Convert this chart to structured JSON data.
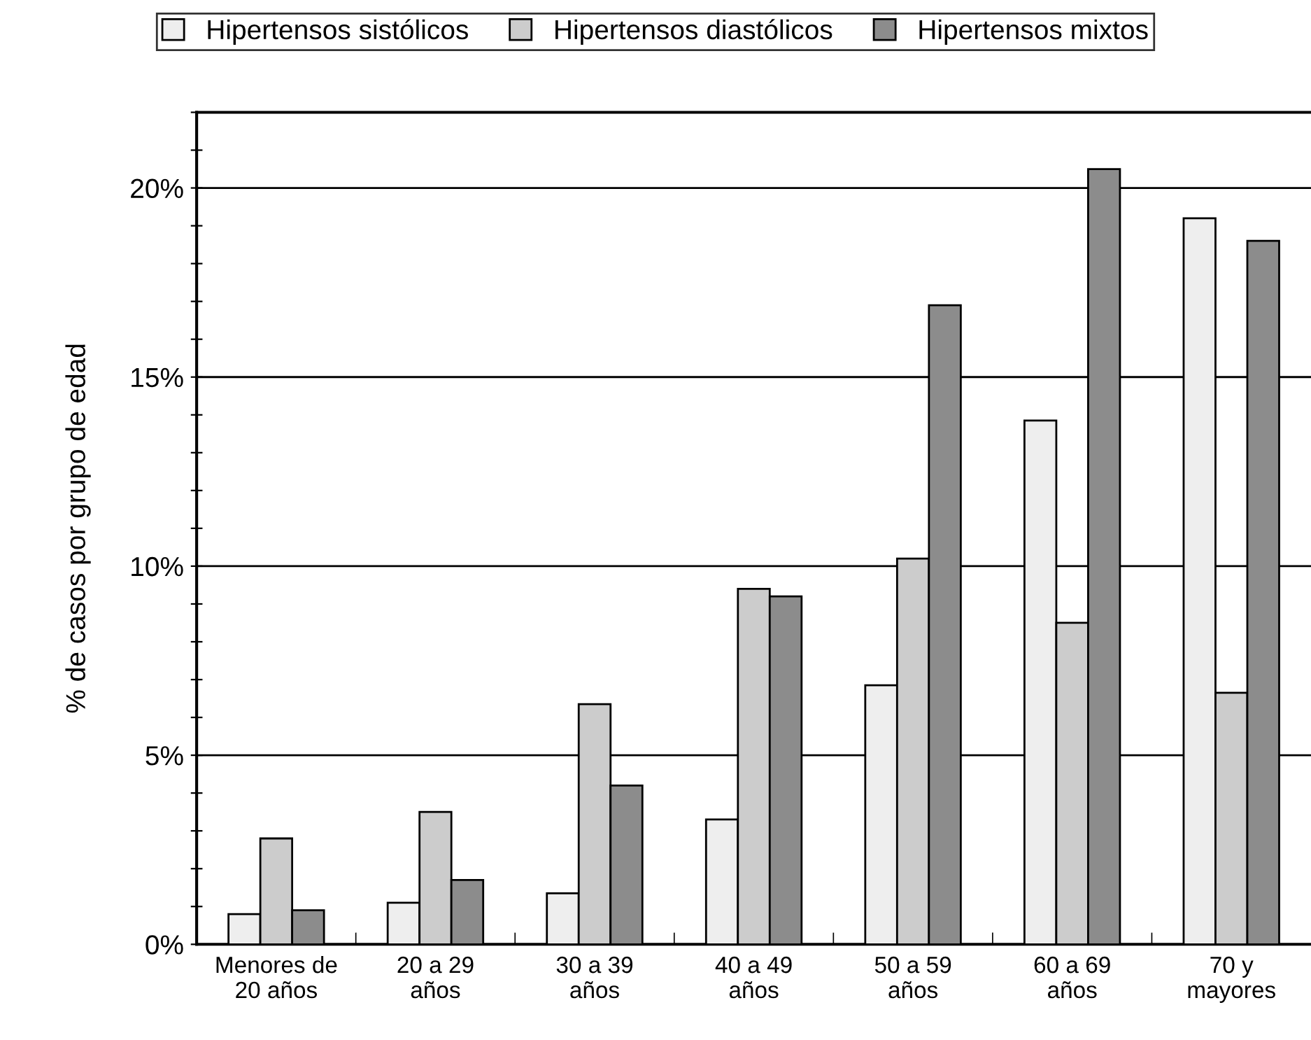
{
  "chart_data": {
    "type": "bar",
    "ylabel": "% de casos por grupo de edad",
    "categories": [
      "Menores de\n20 años",
      "20 a 29\naños",
      "30 a 39\naños",
      "40 a 49\naños",
      "50 a 59\naños",
      "60 a 69\naños",
      "70 y\nmayores"
    ],
    "series": [
      {
        "name": "Hipertensos sistólicos",
        "color": "#eeeeee",
        "values": [
          0.8,
          1.1,
          1.35,
          3.3,
          6.85,
          13.85,
          19.2
        ]
      },
      {
        "name": "Hipertensos diastólicos",
        "color": "#cccccc",
        "values": [
          2.8,
          3.5,
          6.35,
          9.4,
          10.2,
          8.5,
          6.65
        ]
      },
      {
        "name": "Hipertensos mixtos",
        "color": "#8c8c8c",
        "values": [
          0.9,
          1.7,
          4.2,
          9.2,
          16.9,
          20.5,
          18.6
        ]
      }
    ],
    "ylim": [
      0,
      22
    ],
    "yticks": [
      {
        "value": 0,
        "label": "0%"
      },
      {
        "value": 1,
        "label": null
      },
      {
        "value": 2,
        "label": null
      },
      {
        "value": 3,
        "label": null
      },
      {
        "value": 4,
        "label": null
      },
      {
        "value": 5,
        "label": "5%"
      },
      {
        "value": 6,
        "label": null
      },
      {
        "value": 7,
        "label": null
      },
      {
        "value": 8,
        "label": null
      },
      {
        "value": 9,
        "label": null
      },
      {
        "value": 10,
        "label": "10%"
      },
      {
        "value": 11,
        "label": null
      },
      {
        "value": 12,
        "label": null
      },
      {
        "value": 13,
        "label": null
      },
      {
        "value": 14,
        "label": null
      },
      {
        "value": 15,
        "label": "15%"
      },
      {
        "value": 16,
        "label": null
      },
      {
        "value": 17,
        "label": null
      },
      {
        "value": 18,
        "label": null
      },
      {
        "value": 19,
        "label": null
      },
      {
        "value": 20,
        "label": "20%"
      },
      {
        "value": 21,
        "label": null
      },
      {
        "value": 22,
        "label": null
      }
    ],
    "grid": "y",
    "legend": "top"
  }
}
